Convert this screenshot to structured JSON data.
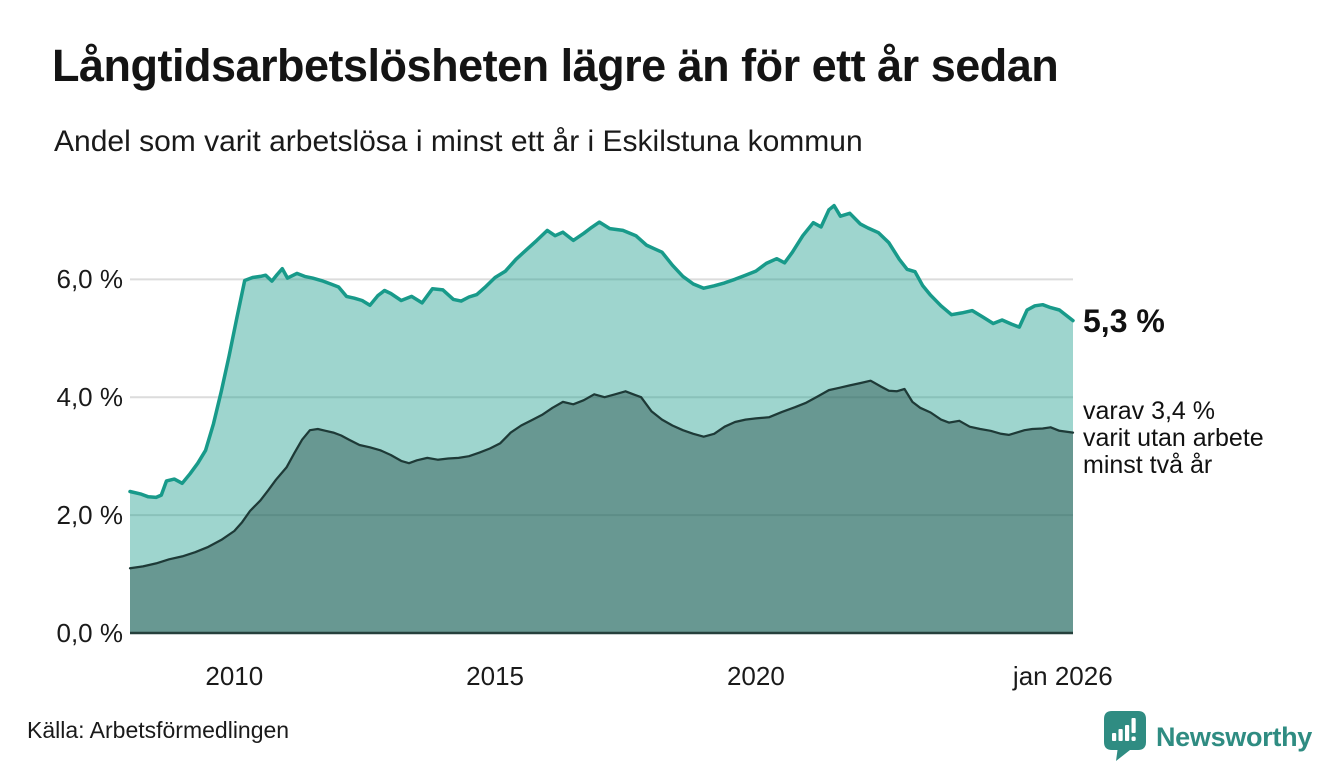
{
  "header": {
    "title": "Långtidsarbetslösheten lägre än för ett år sedan",
    "subtitle": "Andel som varit arbetslösa i minst ett år i Eskilstuna kommun"
  },
  "chart_data": {
    "type": "area",
    "title": "Långtidsarbetslösheten lägre än för ett år sedan",
    "subtitle": "Andel som varit arbetslösa i minst ett år i Eskilstuna kommun",
    "unit": "%",
    "grid": "horizontal",
    "x_axis": {
      "domain": [
        2008.0,
        2026.08
      ],
      "ticks": [
        {
          "label": "2010",
          "year": 2010.0
        },
        {
          "label": "2015",
          "year": 2015.0
        },
        {
          "label": "2020",
          "year": 2020.0
        },
        {
          "label": "jan 2026",
          "year": 2026.0
        }
      ]
    },
    "y_axis": {
      "ylim": [
        0,
        7.6
      ],
      "ticks": [
        {
          "label": "6,0 %",
          "value": 6.0,
          "gridline": true
        },
        {
          "label": "4,0 %",
          "value": 4.0,
          "gridline": true
        },
        {
          "label": "2,0 %",
          "value": 2.0,
          "gridline": true
        },
        {
          "label": "0,0 %",
          "value": 0.0,
          "gridline": false
        }
      ]
    },
    "colors": {
      "line_total": "#189A8A",
      "fill_total": "rgba(24,154,138,0.42)",
      "line_two_years": "#1E3A37",
      "fill_two_years": "rgba(30,70,65,0.42)",
      "gridline": "#DCDCDC",
      "baseline": "#25403C"
    },
    "series": [
      {
        "name": "Arbetslösa minst ett år",
        "latest_value": 5.3,
        "points": [
          [
            2008.0,
            2.4
          ],
          [
            2008.2,
            2.36
          ],
          [
            2008.35,
            2.31
          ],
          [
            2008.5,
            2.3
          ],
          [
            2008.6,
            2.34
          ],
          [
            2008.7,
            2.58
          ],
          [
            2008.85,
            2.61
          ],
          [
            2009.0,
            2.54
          ],
          [
            2009.15,
            2.7
          ],
          [
            2009.3,
            2.88
          ],
          [
            2009.45,
            3.1
          ],
          [
            2009.6,
            3.55
          ],
          [
            2009.75,
            4.1
          ],
          [
            2009.9,
            4.7
          ],
          [
            2010.05,
            5.35
          ],
          [
            2010.2,
            5.98
          ],
          [
            2010.35,
            6.03
          ],
          [
            2010.5,
            6.05
          ],
          [
            2010.6,
            6.07
          ],
          [
            2010.72,
            5.97
          ],
          [
            2010.82,
            6.08
          ],
          [
            2010.92,
            6.18
          ],
          [
            2011.02,
            6.02
          ],
          [
            2011.2,
            6.1
          ],
          [
            2011.35,
            6.05
          ],
          [
            2011.5,
            6.02
          ],
          [
            2011.7,
            5.97
          ],
          [
            2011.85,
            5.92
          ],
          [
            2012.0,
            5.87
          ],
          [
            2012.15,
            5.71
          ],
          [
            2012.3,
            5.68
          ],
          [
            2012.45,
            5.64
          ],
          [
            2012.6,
            5.56
          ],
          [
            2012.75,
            5.72
          ],
          [
            2012.88,
            5.81
          ],
          [
            2013.0,
            5.76
          ],
          [
            2013.2,
            5.64
          ],
          [
            2013.4,
            5.71
          ],
          [
            2013.6,
            5.6
          ],
          [
            2013.8,
            5.84
          ],
          [
            2014.0,
            5.82
          ],
          [
            2014.2,
            5.66
          ],
          [
            2014.35,
            5.63
          ],
          [
            2014.5,
            5.7
          ],
          [
            2014.65,
            5.74
          ],
          [
            2014.8,
            5.86
          ],
          [
            2015.0,
            6.03
          ],
          [
            2015.2,
            6.14
          ],
          [
            2015.4,
            6.34
          ],
          [
            2015.6,
            6.5
          ],
          [
            2015.8,
            6.66
          ],
          [
            2016.0,
            6.83
          ],
          [
            2016.15,
            6.74
          ],
          [
            2016.3,
            6.8
          ],
          [
            2016.5,
            6.66
          ],
          [
            2016.7,
            6.78
          ],
          [
            2016.85,
            6.88
          ],
          [
            2017.0,
            6.97
          ],
          [
            2017.2,
            6.86
          ],
          [
            2017.45,
            6.83
          ],
          [
            2017.7,
            6.74
          ],
          [
            2017.9,
            6.58
          ],
          [
            2018.05,
            6.52
          ],
          [
            2018.2,
            6.46
          ],
          [
            2018.4,
            6.24
          ],
          [
            2018.6,
            6.05
          ],
          [
            2018.8,
            5.92
          ],
          [
            2019.0,
            5.85
          ],
          [
            2019.2,
            5.89
          ],
          [
            2019.4,
            5.94
          ],
          [
            2019.6,
            6.0
          ],
          [
            2019.8,
            6.07
          ],
          [
            2020.0,
            6.14
          ],
          [
            2020.2,
            6.27
          ],
          [
            2020.4,
            6.35
          ],
          [
            2020.55,
            6.28
          ],
          [
            2020.7,
            6.46
          ],
          [
            2020.9,
            6.74
          ],
          [
            2021.1,
            6.96
          ],
          [
            2021.25,
            6.89
          ],
          [
            2021.4,
            7.18
          ],
          [
            2021.5,
            7.25
          ],
          [
            2021.62,
            7.07
          ],
          [
            2021.8,
            7.12
          ],
          [
            2022.0,
            6.94
          ],
          [
            2022.15,
            6.87
          ],
          [
            2022.35,
            6.79
          ],
          [
            2022.55,
            6.62
          ],
          [
            2022.75,
            6.34
          ],
          [
            2022.9,
            6.17
          ],
          [
            2023.05,
            6.13
          ],
          [
            2023.2,
            5.89
          ],
          [
            2023.35,
            5.73
          ],
          [
            2023.55,
            5.55
          ],
          [
            2023.75,
            5.4
          ],
          [
            2023.95,
            5.43
          ],
          [
            2024.15,
            5.47
          ],
          [
            2024.35,
            5.36
          ],
          [
            2024.55,
            5.25
          ],
          [
            2024.72,
            5.31
          ],
          [
            2024.9,
            5.24
          ],
          [
            2025.05,
            5.19
          ],
          [
            2025.2,
            5.48
          ],
          [
            2025.35,
            5.55
          ],
          [
            2025.5,
            5.57
          ],
          [
            2025.65,
            5.52
          ],
          [
            2025.82,
            5.48
          ],
          [
            2026.08,
            5.3
          ]
        ]
      },
      {
        "name": "Varav utan arbete minst två år",
        "latest_value": 3.4,
        "points": [
          [
            2008.0,
            1.1
          ],
          [
            2008.25,
            1.13
          ],
          [
            2008.5,
            1.18
          ],
          [
            2008.75,
            1.25
          ],
          [
            2009.0,
            1.3
          ],
          [
            2009.25,
            1.37
          ],
          [
            2009.5,
            1.46
          ],
          [
            2009.75,
            1.58
          ],
          [
            2010.0,
            1.73
          ],
          [
            2010.15,
            1.88
          ],
          [
            2010.3,
            2.07
          ],
          [
            2010.5,
            2.25
          ],
          [
            2010.65,
            2.42
          ],
          [
            2010.8,
            2.6
          ],
          [
            2011.0,
            2.81
          ],
          [
            2011.15,
            3.05
          ],
          [
            2011.3,
            3.28
          ],
          [
            2011.45,
            3.44
          ],
          [
            2011.6,
            3.46
          ],
          [
            2011.75,
            3.43
          ],
          [
            2011.9,
            3.4
          ],
          [
            2012.05,
            3.35
          ],
          [
            2012.2,
            3.28
          ],
          [
            2012.4,
            3.19
          ],
          [
            2012.6,
            3.15
          ],
          [
            2012.8,
            3.1
          ],
          [
            2013.0,
            3.02
          ],
          [
            2013.2,
            2.92
          ],
          [
            2013.35,
            2.88
          ],
          [
            2013.5,
            2.93
          ],
          [
            2013.7,
            2.97
          ],
          [
            2013.9,
            2.94
          ],
          [
            2014.1,
            2.96
          ],
          [
            2014.3,
            2.97
          ],
          [
            2014.5,
            3.0
          ],
          [
            2014.7,
            3.06
          ],
          [
            2014.9,
            3.13
          ],
          [
            2015.1,
            3.22
          ],
          [
            2015.3,
            3.4
          ],
          [
            2015.5,
            3.52
          ],
          [
            2015.7,
            3.61
          ],
          [
            2015.9,
            3.7
          ],
          [
            2016.1,
            3.82
          ],
          [
            2016.3,
            3.92
          ],
          [
            2016.5,
            3.88
          ],
          [
            2016.7,
            3.95
          ],
          [
            2016.9,
            4.05
          ],
          [
            2017.1,
            4.0
          ],
          [
            2017.3,
            4.05
          ],
          [
            2017.5,
            4.1
          ],
          [
            2017.65,
            4.05
          ],
          [
            2017.8,
            4.0
          ],
          [
            2018.0,
            3.76
          ],
          [
            2018.2,
            3.62
          ],
          [
            2018.4,
            3.52
          ],
          [
            2018.6,
            3.44
          ],
          [
            2018.8,
            3.38
          ],
          [
            2019.0,
            3.33
          ],
          [
            2019.2,
            3.38
          ],
          [
            2019.4,
            3.5
          ],
          [
            2019.6,
            3.58
          ],
          [
            2019.8,
            3.62
          ],
          [
            2020.0,
            3.64
          ],
          [
            2020.25,
            3.66
          ],
          [
            2020.5,
            3.75
          ],
          [
            2020.75,
            3.83
          ],
          [
            2020.95,
            3.9
          ],
          [
            2021.2,
            4.02
          ],
          [
            2021.4,
            4.12
          ],
          [
            2021.6,
            4.16
          ],
          [
            2021.8,
            4.2
          ],
          [
            2022.0,
            4.24
          ],
          [
            2022.2,
            4.28
          ],
          [
            2022.4,
            4.18
          ],
          [
            2022.55,
            4.11
          ],
          [
            2022.7,
            4.1
          ],
          [
            2022.85,
            4.14
          ],
          [
            2023.0,
            3.92
          ],
          [
            2023.15,
            3.82
          ],
          [
            2023.35,
            3.74
          ],
          [
            2023.55,
            3.62
          ],
          [
            2023.7,
            3.57
          ],
          [
            2023.9,
            3.6
          ],
          [
            2024.1,
            3.5
          ],
          [
            2024.3,
            3.46
          ],
          [
            2024.5,
            3.43
          ],
          [
            2024.7,
            3.38
          ],
          [
            2024.85,
            3.36
          ],
          [
            2025.0,
            3.4
          ],
          [
            2025.15,
            3.44
          ],
          [
            2025.3,
            3.46
          ],
          [
            2025.5,
            3.47
          ],
          [
            2025.65,
            3.49
          ],
          [
            2025.82,
            3.43
          ],
          [
            2026.08,
            3.4
          ]
        ]
      }
    ],
    "annotations": {
      "total_label": "5,3 %",
      "total_value": 5.3,
      "secondary_value": 3.4,
      "secondary_line1": "varav 3,4 %",
      "secondary_line2": "varit utan arbete",
      "secondary_line3": "minst två år"
    }
  },
  "footer": {
    "source": "Källa: Arbetsförmedlingen",
    "brand": "Newsworthy",
    "brand_color": "#2F8C82"
  }
}
